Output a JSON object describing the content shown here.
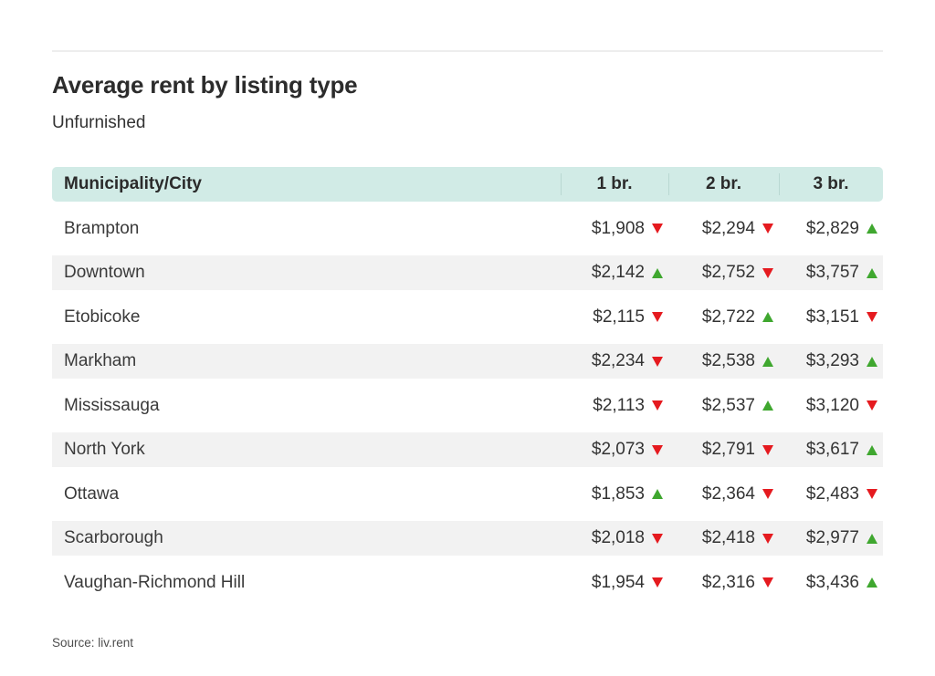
{
  "header": {
    "title": "Average rent by listing type",
    "subtitle": "Unfurnished"
  },
  "table": {
    "columns": [
      "Municipality/City",
      "1 br.",
      "2 br.",
      "3 br."
    ],
    "rows": [
      {
        "city": "Brampton",
        "values": [
          {
            "amount": "$1,908",
            "trend": "down"
          },
          {
            "amount": "$2,294",
            "trend": "down"
          },
          {
            "amount": "$2,829",
            "trend": "up"
          }
        ]
      },
      {
        "city": "Downtown",
        "values": [
          {
            "amount": "$2,142",
            "trend": "up"
          },
          {
            "amount": "$2,752",
            "trend": "down"
          },
          {
            "amount": "$3,757",
            "trend": "up"
          }
        ]
      },
      {
        "city": "Etobicoke",
        "values": [
          {
            "amount": "$2,115",
            "trend": "down"
          },
          {
            "amount": "$2,722",
            "trend": "up"
          },
          {
            "amount": "$3,151",
            "trend": "down"
          }
        ]
      },
      {
        "city": "Markham",
        "values": [
          {
            "amount": "$2,234",
            "trend": "down"
          },
          {
            "amount": "$2,538",
            "trend": "up"
          },
          {
            "amount": "$3,293",
            "trend": "up"
          }
        ]
      },
      {
        "city": "Mississauga",
        "values": [
          {
            "amount": "$2,113",
            "trend": "down"
          },
          {
            "amount": "$2,537",
            "trend": "up"
          },
          {
            "amount": "$3,120",
            "trend": "down"
          }
        ]
      },
      {
        "city": "North York",
        "values": [
          {
            "amount": "$2,073",
            "trend": "down"
          },
          {
            "amount": "$2,791",
            "trend": "down"
          },
          {
            "amount": "$3,617",
            "trend": "up"
          }
        ]
      },
      {
        "city": "Ottawa",
        "values": [
          {
            "amount": "$1,853",
            "trend": "up"
          },
          {
            "amount": "$2,364",
            "trend": "down"
          },
          {
            "amount": "$2,483",
            "trend": "down"
          }
        ]
      },
      {
        "city": "Scarborough",
        "values": [
          {
            "amount": "$2,018",
            "trend": "down"
          },
          {
            "amount": "$2,418",
            "trend": "down"
          },
          {
            "amount": "$2,977",
            "trend": "up"
          }
        ]
      },
      {
        "city": "Vaughan-Richmond Hill",
        "values": [
          {
            "amount": "$1,954",
            "trend": "down"
          },
          {
            "amount": "$2,316",
            "trend": "down"
          },
          {
            "amount": "$3,436",
            "trend": "up"
          }
        ]
      }
    ]
  },
  "footer": {
    "source": "Source: liv.rent"
  },
  "colors": {
    "header_bg": "#d1ebe6",
    "alt_row_bg": "#f2f2f2",
    "up_green": "#3fa72f",
    "down_red": "#e51a1f"
  },
  "chart_data": {
    "type": "table",
    "title": "Average rent by listing type",
    "subtitle": "Unfurnished",
    "columns": [
      "Municipality/City",
      "1 br.",
      "2 br.",
      "3 br."
    ],
    "rows": [
      {
        "city": "Brampton",
        "br1": 1908,
        "br1_trend": "down",
        "br2": 2294,
        "br2_trend": "down",
        "br3": 2829,
        "br3_trend": "up"
      },
      {
        "city": "Downtown",
        "br1": 2142,
        "br1_trend": "up",
        "br2": 2752,
        "br2_trend": "down",
        "br3": 3757,
        "br3_trend": "up"
      },
      {
        "city": "Etobicoke",
        "br1": 2115,
        "br1_trend": "down",
        "br2": 2722,
        "br2_trend": "up",
        "br3": 3151,
        "br3_trend": "down"
      },
      {
        "city": "Markham",
        "br1": 2234,
        "br1_trend": "down",
        "br2": 2538,
        "br2_trend": "up",
        "br3": 3293,
        "br3_trend": "up"
      },
      {
        "city": "Mississauga",
        "br1": 2113,
        "br1_trend": "down",
        "br2": 2537,
        "br2_trend": "up",
        "br3": 3120,
        "br3_trend": "down"
      },
      {
        "city": "North York",
        "br1": 2073,
        "br1_trend": "down",
        "br2": 2791,
        "br2_trend": "down",
        "br3": 3617,
        "br3_trend": "up"
      },
      {
        "city": "Ottawa",
        "br1": 1853,
        "br1_trend": "up",
        "br2": 2364,
        "br2_trend": "down",
        "br3": 2483,
        "br3_trend": "down"
      },
      {
        "city": "Scarborough",
        "br1": 2018,
        "br1_trend": "down",
        "br2": 2418,
        "br2_trend": "down",
        "br3": 2977,
        "br3_trend": "up"
      },
      {
        "city": "Vaughan-Richmond Hill",
        "br1": 1954,
        "br1_trend": "down",
        "br2": 2316,
        "br2_trend": "down",
        "br3": 3436,
        "br3_trend": "up"
      }
    ],
    "trend_legend": {
      "up": "green up arrow",
      "down": "red down arrow"
    },
    "source": "Source: liv.rent"
  }
}
